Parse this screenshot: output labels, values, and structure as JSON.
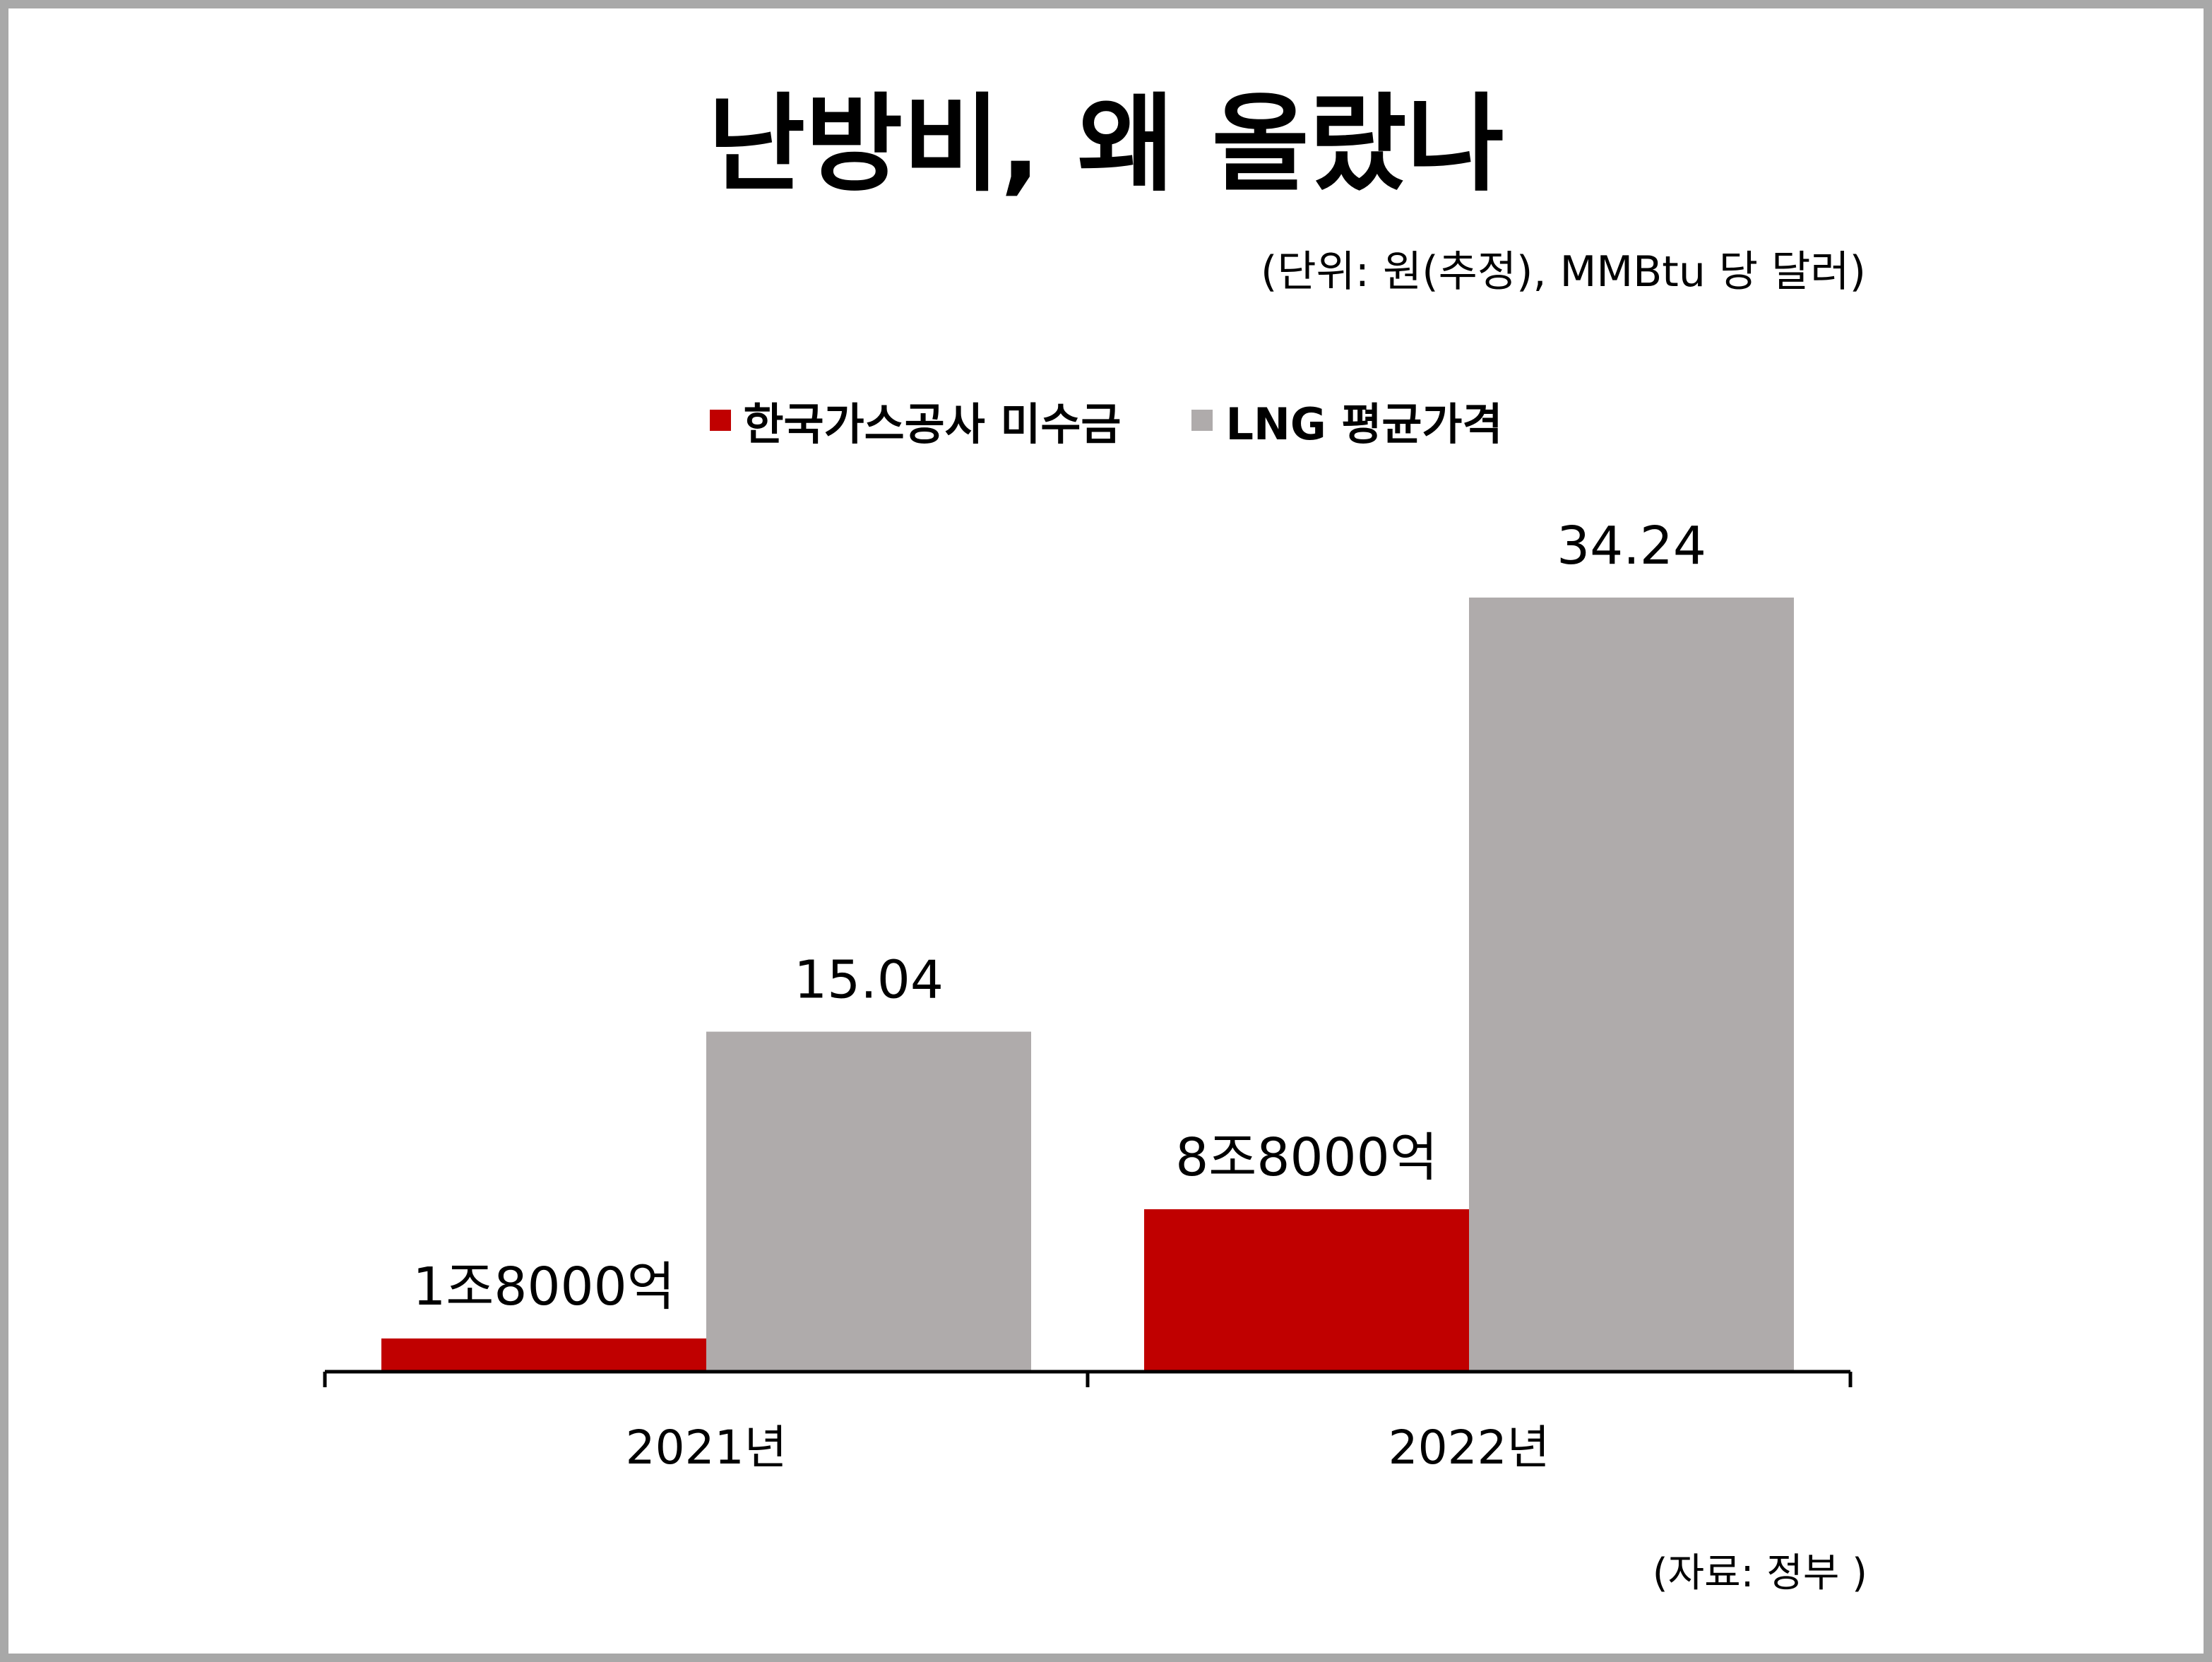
{
  "chart_data": {
    "type": "bar",
    "title": "난방비, 왜 올랐나",
    "unit_note": "(단위: 원(추정), MMBtu 당 달러)",
    "source": "(자료: 정부 )",
    "categories": [
      "2021년",
      "2022년"
    ],
    "series": [
      {
        "name": "한국가스공사 미수금",
        "color": "#c00000",
        "values": [
          1.8,
          8.8
        ],
        "labels": [
          "1조8000억",
          "8조8000억"
        ]
      },
      {
        "name": "LNG 평균가격",
        "color": "#afabab",
        "values": [
          15.04,
          34.24
        ],
        "labels": [
          "15.04",
          "34.24"
        ]
      }
    ]
  }
}
